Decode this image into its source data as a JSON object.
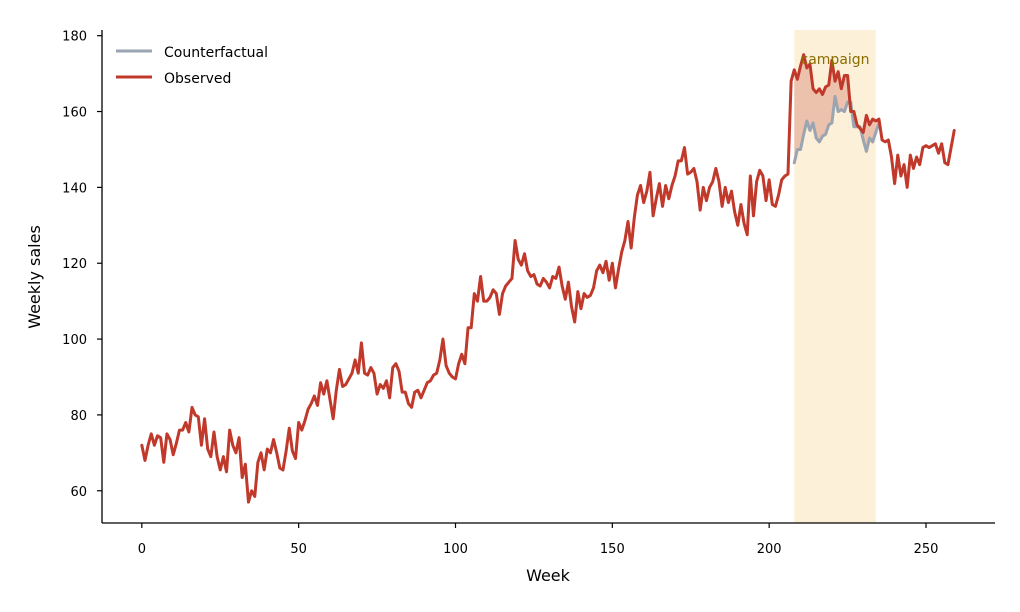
{
  "chart_data": {
    "type": "line",
    "title": "",
    "xlabel": "Week",
    "ylabel": "Weekly sales",
    "xlim": [
      -12.7,
      272
    ],
    "ylim": [
      51.5,
      181.5
    ],
    "xticks": [
      0,
      50,
      100,
      150,
      200,
      250
    ],
    "yticks": [
      60,
      80,
      100,
      120,
      140,
      160,
      180
    ],
    "grid": false,
    "legend_position": "top-left",
    "annotation": {
      "text": "campaign",
      "x_start": 208,
      "x_end": 234,
      "shade_color": "#fdf0d8",
      "text_color": "#8a6d00"
    },
    "series": [
      {
        "name": "Observed",
        "color": "#c0392b",
        "x_start": 0,
        "values": [
          72,
          68,
          72,
          75,
          72,
          74.5,
          74,
          67.5,
          75,
          73.5,
          69.5,
          72.5,
          76,
          76,
          78,
          75.5,
          82,
          80,
          79.5,
          72,
          79,
          71,
          69,
          75.5,
          69,
          65.5,
          69,
          65,
          76,
          72,
          70,
          74,
          63.5,
          67,
          57,
          60,
          58.5,
          67.5,
          70,
          65.5,
          71,
          70,
          73.5,
          70,
          66,
          65.5,
          70.5,
          76.5,
          70.5,
          68.5,
          78,
          76,
          78.5,
          81.5,
          83,
          85,
          82.5,
          88.5,
          85.5,
          89,
          84,
          79,
          86.5,
          92,
          87.5,
          88,
          89.5,
          91,
          94.5,
          91,
          99,
          91,
          90.5,
          92.5,
          91,
          85.5,
          88,
          87,
          89,
          84.5,
          92.5,
          93.5,
          91.5,
          86,
          86,
          83,
          82,
          86,
          86.5,
          84.5,
          86.5,
          88.5,
          89,
          90.5,
          91,
          94.5,
          100,
          93,
          91,
          90,
          89.5,
          93.5,
          96,
          93.5,
          103,
          103,
          112,
          110,
          116.5,
          110,
          110,
          111,
          113,
          112,
          106.5,
          112,
          114,
          115,
          116,
          126,
          121,
          119.5,
          122.5,
          118,
          116.5,
          117,
          114.5,
          114,
          116,
          115,
          113.5,
          116.5,
          116,
          119,
          114,
          110.5,
          115,
          108.5,
          104.5,
          112.5,
          108,
          112,
          111,
          111.5,
          113.5,
          118,
          119.5,
          117.5,
          120.5,
          115.5,
          120,
          113.5,
          118.5,
          123,
          126,
          131,
          124,
          132,
          138,
          140.5,
          136,
          139,
          144,
          132.5,
          137,
          141,
          135,
          140.5,
          137,
          140.5,
          143,
          147,
          147,
          150.5,
          143.5,
          144,
          145,
          141.5,
          134,
          140,
          136.5,
          140,
          141.5,
          145,
          141.5,
          135,
          140,
          136,
          139,
          133.5,
          130,
          135.5,
          130.5,
          127.5,
          143,
          132.5,
          141.5,
          144.5,
          143,
          136.5,
          142,
          135.5,
          135,
          138,
          142,
          143,
          143.5,
          168,
          171,
          168.5,
          172,
          175,
          171.5,
          172.5,
          166,
          165,
          166,
          164.5,
          166.5,
          167,
          173.5,
          168,
          170.5,
          166,
          169.5,
          169.5,
          160,
          160,
          156.5,
          155.5,
          154.5,
          159,
          156.5,
          158,
          157.5,
          158,
          152.5,
          152,
          152.5,
          148,
          141,
          148.5,
          143,
          146,
          140,
          148.5,
          145,
          148,
          146,
          150.5,
          151,
          150.5,
          151,
          151.5,
          149,
          151.5,
          146.5,
          146,
          150.5,
          155
        ]
      },
      {
        "name": "Counterfactual",
        "color": "#9aa5b1",
        "x_start": 208,
        "values": [
          146.5,
          150,
          150,
          154,
          157.5,
          155,
          157,
          153,
          152,
          153.5,
          154,
          156.5,
          157,
          164,
          160,
          160.5,
          160,
          162.5,
          162.5,
          156,
          156,
          156,
          152.5,
          149.5,
          153,
          152,
          154.5,
          157
        ]
      }
    ]
  }
}
